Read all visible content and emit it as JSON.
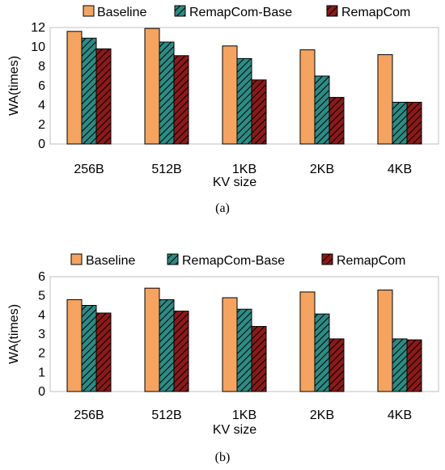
{
  "chart_data": [
    {
      "type": "bar",
      "caption": "(a)",
      "categories": [
        "256B",
        "512B",
        "1KB",
        "2KB",
        "4KB"
      ],
      "xlabel": "KV size",
      "ylabel": "WA(times)",
      "ylim": [
        0,
        12
      ],
      "yticks": [
        0,
        2,
        4,
        6,
        8,
        10,
        12
      ],
      "grid": false,
      "legend_position": "top",
      "series": [
        {
          "name": "Baseline",
          "values": [
            11.6,
            11.9,
            10.1,
            9.7,
            9.2
          ],
          "color": "#F4A460",
          "pattern": "solid"
        },
        {
          "name": "RemapCom-Base",
          "values": [
            10.9,
            10.5,
            8.8,
            7.0,
            4.3
          ],
          "color": "#2E8B84",
          "pattern": "hatch"
        },
        {
          "name": "RemapCom",
          "values": [
            9.8,
            9.1,
            6.6,
            4.8,
            4.3
          ],
          "color": "#8B1A1A",
          "pattern": "hatch"
        }
      ]
    },
    {
      "type": "bar",
      "caption": "(b)",
      "categories": [
        "256B",
        "512B",
        "1KB",
        "2KB",
        "4KB"
      ],
      "xlabel": "KV size",
      "ylabel": "WA(times)",
      "ylim": [
        0,
        6
      ],
      "yticks": [
        0,
        1,
        2,
        3,
        4,
        5,
        6
      ],
      "grid": false,
      "legend_position": "top",
      "series": [
        {
          "name": "Baseline",
          "values": [
            4.8,
            5.4,
            4.9,
            5.2,
            5.3
          ],
          "color": "#F4A460",
          "pattern": "solid"
        },
        {
          "name": "RemapCom-Base",
          "values": [
            4.5,
            4.8,
            4.3,
            4.05,
            2.75
          ],
          "color": "#2E8B84",
          "pattern": "hatch"
        },
        {
          "name": "RemapCom",
          "values": [
            4.1,
            4.2,
            3.4,
            2.75,
            2.7
          ],
          "color": "#8B1A1A",
          "pattern": "hatch"
        }
      ]
    }
  ]
}
